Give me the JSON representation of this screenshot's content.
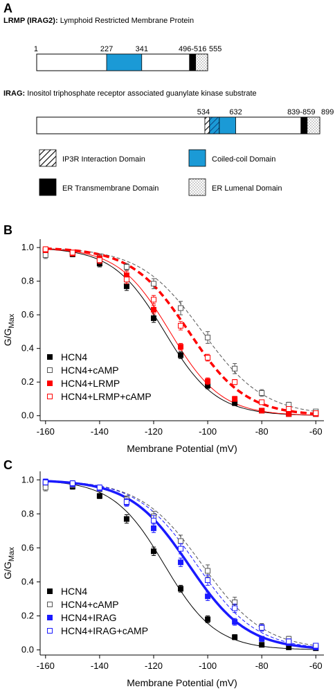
{
  "panel_labels": [
    "A",
    "B",
    "C"
  ],
  "lrmp": {
    "title_bold": "LRMP (IRAG2):",
    "title_rest": " Lymphoid Restricted Membrane Protein",
    "length": 555,
    "labels": [
      "1",
      "227",
      "341",
      "496-516",
      "555"
    ],
    "domains": [
      {
        "type": "coiled",
        "start": 227,
        "end": 341
      },
      {
        "type": "tm",
        "start": 496,
        "end": 516
      },
      {
        "type": "lumenal",
        "start": 516,
        "end": 555
      }
    ]
  },
  "irag": {
    "title_bold": "IRAG:",
    "title_rest": " Inositol triphosphate receptor associated guanylate kinase substrate",
    "length": 899,
    "labels": [
      "534",
      "632",
      "839-859",
      "899"
    ],
    "domains": [
      {
        "type": "ip3r",
        "start": 534,
        "end": 549
      },
      {
        "type": "overlap",
        "start": 549,
        "end": 580
      },
      {
        "type": "coiled",
        "start": 580,
        "end": 632
      },
      {
        "type": "tm",
        "start": 839,
        "end": 859
      },
      {
        "type": "lumenal",
        "start": 859,
        "end": 899
      }
    ]
  },
  "domain_legend": [
    {
      "type": "ip3r",
      "label": "IP3R Interaction Domain"
    },
    {
      "type": "coiled",
      "label": "Coiled-coil Domain"
    },
    {
      "type": "tm",
      "label": "ER Transmembrane Domain"
    },
    {
      "type": "lumenal",
      "label": "ER Lumenal Domain"
    }
  ],
  "chart_data": [
    {
      "type": "scatter",
      "panel": "B",
      "xlabel": "Membrane Potential (mV)",
      "ylabel_main": "G/G",
      "ylabel_sub": "Max",
      "xlim": [
        -162,
        -57
      ],
      "ylim": [
        -0.03,
        1.05
      ],
      "xticks": [
        -160,
        -140,
        -120,
        -100,
        -80,
        -60
      ],
      "yticks": [
        0.0,
        0.2,
        0.4,
        0.6,
        0.8,
        1.0
      ],
      "x": [
        -160,
        -150,
        -140,
        -130,
        -120,
        -110,
        -100,
        -90,
        -80,
        -70,
        -60
      ],
      "legend_position": "bottom-left",
      "series": [
        {
          "name": "HCN4",
          "color": "#000000",
          "fill": "filled",
          "values": [
            0.98,
            0.96,
            0.905,
            0.77,
            0.58,
            0.36,
            0.18,
            0.075,
            0.03,
            0.01,
            0.01
          ],
          "err": [
            0.015,
            0.015,
            0.02,
            0.025,
            0.025,
            0.02,
            0.02,
            0.015,
            0.01,
            0.01,
            0.01
          ],
          "fit": {
            "v50": -116,
            "k": 9.5,
            "stroke": 1,
            "dash": ""
          }
        },
        {
          "name": "HCN4+cAMP",
          "color": "#555555",
          "fill": "open",
          "values": [
            0.955,
            0.965,
            0.94,
            0.885,
            0.785,
            0.64,
            0.465,
            0.28,
            0.135,
            0.065,
            0.025
          ],
          "err": [
            0.02,
            0.015,
            0.02,
            0.02,
            0.03,
            0.04,
            0.035,
            0.03,
            0.02,
            0.015,
            0.01
          ],
          "fit": {
            "v50": -102,
            "k": 11.5,
            "stroke": 1,
            "dash": "5,3"
          }
        },
        {
          "name": "HCN4+LRMP",
          "color": "#ff0000",
          "fill": "filled",
          "values": [
            0.985,
            0.965,
            0.935,
            0.835,
            0.63,
            0.41,
            0.205,
            0.1,
            0.03,
            0.01,
            0.01
          ],
          "err": [
            0.015,
            0.015,
            0.02,
            0.025,
            0.025,
            0.02,
            0.02,
            0.015,
            0.01,
            0.01,
            0.01
          ],
          "fit": {
            "v50": -107,
            "k": 10.5,
            "stroke": 3.5,
            "dash": "9,5"
          }
        },
        {
          "name": "HCN4+LRMP+cAMP",
          "color": "#ff0000",
          "fill": "open",
          "values": [
            0.99,
            0.97,
            0.925,
            0.81,
            0.69,
            0.535,
            0.345,
            0.2,
            0.08,
            0.04,
            0.015
          ],
          "err": [
            0.015,
            0.015,
            0.02,
            0.025,
            0.025,
            0.025,
            0.02,
            0.015,
            0.01,
            0.01,
            0.01
          ],
          "fit": {
            "v50": -114,
            "k": 9.5,
            "stroke": 1,
            "dash": ""
          }
        }
      ]
    },
    {
      "type": "scatter",
      "panel": "C",
      "xlabel": "Membrane Potential (mV)",
      "ylabel_main": "G/G",
      "ylabel_sub": "Max",
      "xlim": [
        -162,
        -57
      ],
      "ylim": [
        -0.03,
        1.05
      ],
      "xticks": [
        -160,
        -140,
        -120,
        -100,
        -80,
        -60
      ],
      "yticks": [
        0.0,
        0.2,
        0.4,
        0.6,
        0.8,
        1.0
      ],
      "x": [
        -160,
        -150,
        -140,
        -130,
        -120,
        -110,
        -100,
        -90,
        -80,
        -70,
        -60
      ],
      "legend_position": "bottom-left",
      "series": [
        {
          "name": "HCN4",
          "color": "#000000",
          "fill": "filled",
          "values": [
            0.975,
            0.96,
            0.905,
            0.77,
            0.58,
            0.36,
            0.18,
            0.075,
            0.03,
            0.015,
            0.01
          ],
          "err": [
            0.015,
            0.015,
            0.015,
            0.025,
            0.025,
            0.02,
            0.02,
            0.015,
            0.01,
            0.01,
            0.01
          ],
          "fit": {
            "v50": -116,
            "k": 9.5,
            "stroke": 1,
            "dash": ""
          }
        },
        {
          "name": "HCN4+cAMP",
          "color": "#555555",
          "fill": "open",
          "values": [
            0.955,
            0.97,
            0.945,
            0.885,
            0.785,
            0.64,
            0.465,
            0.28,
            0.135,
            0.065,
            0.025
          ],
          "err": [
            0.02,
            0.015,
            0.015,
            0.02,
            0.03,
            0.035,
            0.035,
            0.03,
            0.02,
            0.015,
            0.01
          ],
          "fit": {
            "v50": -102,
            "k": 11.5,
            "stroke": 1,
            "dash": "5,3"
          }
        },
        {
          "name": "HCN4+IRAG",
          "color": "#1a1aff",
          "fill": "filled",
          "values": [
            0.99,
            0.975,
            0.95,
            0.865,
            0.715,
            0.515,
            0.315,
            0.165,
            0.065,
            0.04,
            0.015
          ],
          "err": [
            0.015,
            0.015,
            0.015,
            0.02,
            0.025,
            0.025,
            0.025,
            0.02,
            0.015,
            0.01,
            0.01
          ],
          "fit": {
            "v50": -107,
            "k": 10.8,
            "stroke": 3.5,
            "dash": ""
          }
        },
        {
          "name": "HCN4+IRAG+cAMP",
          "color": "#1a1aff",
          "fill": "open",
          "values": [
            0.985,
            0.98,
            0.955,
            0.87,
            0.76,
            0.595,
            0.41,
            0.245,
            0.13,
            0.05,
            0.025
          ],
          "err": [
            0.015,
            0.015,
            0.015,
            0.02,
            0.03,
            0.03,
            0.03,
            0.025,
            0.02,
            0.015,
            0.01
          ],
          "fit": {
            "v50": -104,
            "k": 11.0,
            "stroke": 1,
            "dash": "5,3"
          }
        }
      ]
    }
  ]
}
